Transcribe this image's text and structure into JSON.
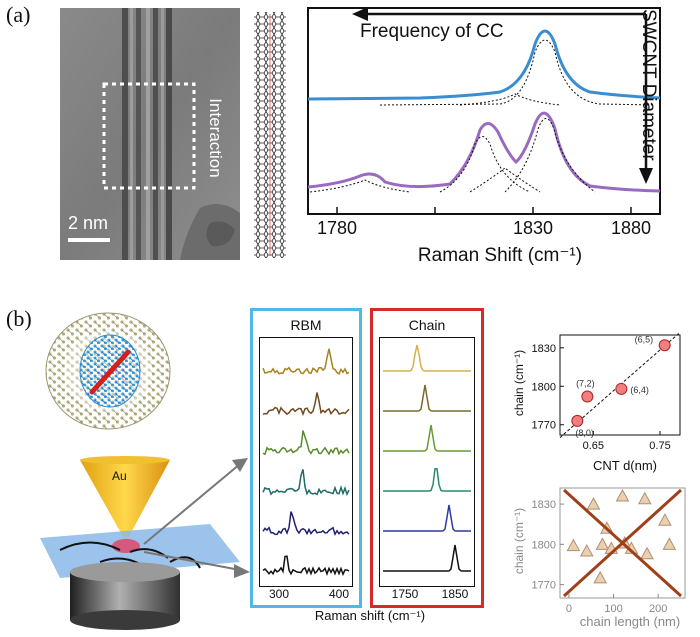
{
  "panel_a": {
    "label": "(a)",
    "tem": {
      "interaction_label": "Interaction",
      "scale_bar_label": "2 nm"
    },
    "spectrum": {
      "arrow_top_label": "Frequency of CC",
      "arrow_side_label": "SWCNT Diameter",
      "xlabel": "Raman Shift (cm⁻¹)",
      "xticks": [
        "1780",
        "1830",
        "1880"
      ]
    }
  },
  "panel_b": {
    "label": "(b)",
    "tip_label": "Au",
    "rbm": {
      "title": "RBM",
      "xticks": [
        "300",
        "400"
      ],
      "colors": [
        "#a7831d",
        "#6e4a20",
        "#5a8a2c",
        "#1e6a66",
        "#20206e",
        "#111111"
      ]
    },
    "chain": {
      "title": "Chain",
      "xticks": [
        "1750",
        "1850"
      ],
      "colors": [
        "#d6b04a",
        "#7a6a2a",
        "#6a9a34",
        "#2a8a70",
        "#2a3aa0",
        "#111111"
      ]
    },
    "shared_xlabel": "Raman shift (cm⁻¹)",
    "colors": {
      "rbm_frame": "#4fb8e8",
      "chain_frame": "#d42a2a"
    }
  },
  "chart_data": [
    {
      "type": "scatter",
      "title": "",
      "xlabel": "CNT d(nm)",
      "ylabel": "chain (cm⁻¹)",
      "xticks": [
        "0.65",
        "0.75"
      ],
      "yticks": [
        "1770",
        "1800",
        "1830"
      ],
      "xlim": [
        0.6,
        0.78
      ],
      "ylim": [
        1762,
        1840
      ],
      "points": [
        {
          "label": "(6,5)",
          "x": 0.757,
          "y": 1832
        },
        {
          "label": "(7,2)",
          "x": 0.641,
          "y": 1792
        },
        {
          "label": "(6,4)",
          "x": 0.692,
          "y": 1798
        },
        {
          "label": "(8,0)",
          "x": 0.626,
          "y": 1773
        }
      ],
      "fit_line": [
        [
          0.6,
          1760
        ],
        [
          0.78,
          1842
        ]
      ]
    },
    {
      "type": "scatter",
      "title": "",
      "xlabel": "chain length (nm)",
      "ylabel": "chain (cm⁻¹)",
      "xticks": [
        "0",
        "100",
        "200"
      ],
      "yticks": [
        "1770",
        "1800",
        "1830"
      ],
      "xlim": [
        -20,
        260
      ],
      "ylim": [
        1760,
        1842
      ],
      "points": [
        {
          "x": 55,
          "y": 1830
        },
        {
          "x": 120,
          "y": 1836
        },
        {
          "x": 170,
          "y": 1834
        },
        {
          "x": 85,
          "y": 1812
        },
        {
          "x": 215,
          "y": 1818
        },
        {
          "x": 10,
          "y": 1799
        },
        {
          "x": 40,
          "y": 1795
        },
        {
          "x": 75,
          "y": 1800
        },
        {
          "x": 95,
          "y": 1797
        },
        {
          "x": 125,
          "y": 1801
        },
        {
          "x": 140,
          "y": 1797
        },
        {
          "x": 175,
          "y": 1793
        },
        {
          "x": 225,
          "y": 1800
        },
        {
          "x": 70,
          "y": 1775
        }
      ]
    }
  ]
}
